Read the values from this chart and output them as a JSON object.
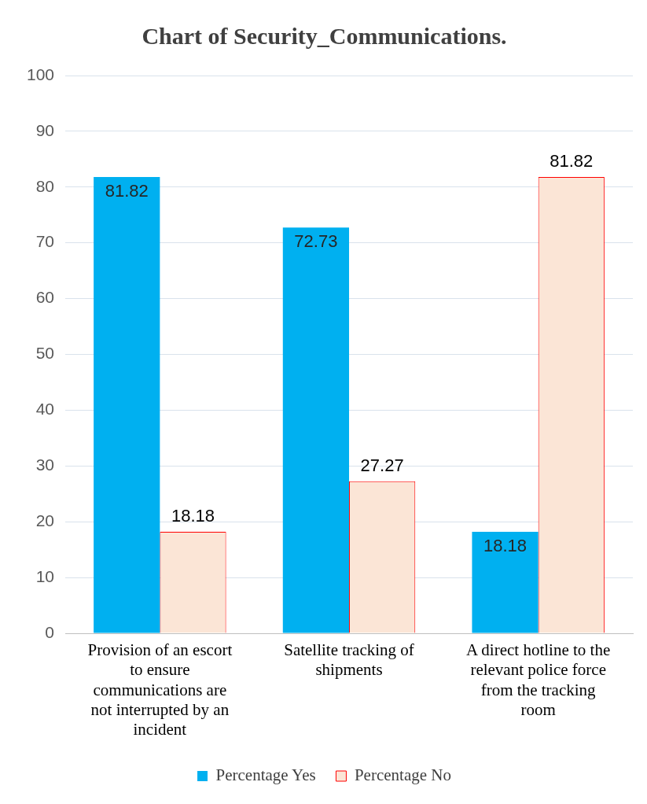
{
  "chart_data": {
    "type": "bar",
    "title": "Chart of Security_Communications.",
    "categories": [
      "Provision of an escort to ensure communications are not interrupted by an incident",
      "Satellite tracking of shipments",
      "A direct hotline to the relevant police force from the tracking room"
    ],
    "series": [
      {
        "name": "Percentage Yes",
        "color": "#00b0f0",
        "values": [
          81.82,
          72.73,
          18.18
        ]
      },
      {
        "name": "Percentage No",
        "color": "#fbe5d6",
        "values": [
          18.18,
          27.27,
          81.82
        ]
      }
    ],
    "ylim": [
      0,
      100
    ],
    "yticks": [
      0,
      10,
      20,
      30,
      40,
      50,
      60,
      70,
      80,
      90,
      100
    ],
    "grid": "y",
    "legend": "bottom",
    "data_labels": true
  }
}
